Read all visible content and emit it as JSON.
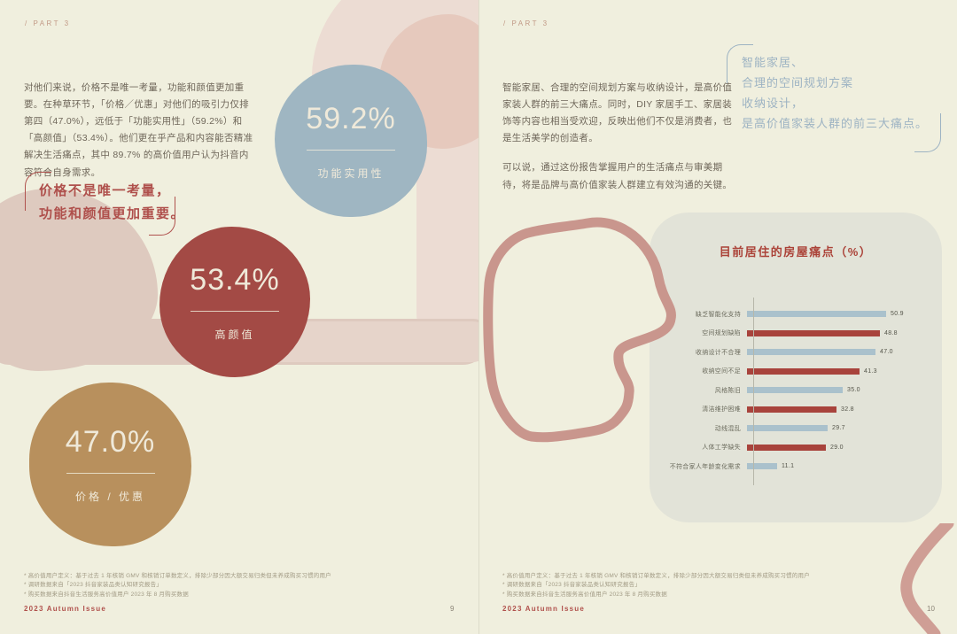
{
  "page_left": {
    "part_label": "/ PART 3",
    "body": "对他们来说，价格不是唯一考量，功能和颜值更加重要。在种草环节，「价格／优惠」对他们的吸引力仅排第四（47.0%），远低于「功能实用性」（59.2%）和「高颜值」（53.4%）。他们更在乎产品和内容能否精准解决生活痛点，其中 89.7% 的高价值用户认为抖音内容符合自身需求。",
    "callout_line1": "价格不是唯一考量，",
    "callout_line2": "功能和颜值更加重要。",
    "stats": [
      {
        "value": "59.2%",
        "label": "功能实用性",
        "color": "#9fb6c2"
      },
      {
        "value": "53.4%",
        "label": "高颜值",
        "color": "#a34a45"
      },
      {
        "value": "47.0%",
        "label": "价格 / 优惠",
        "color": "#b8905d"
      }
    ],
    "footnotes": [
      "* 高价值用户定义：基于过去 1 年核销 GMV 和核销订单数定义，排除少部分因大额交易归类但未养成购买习惯的用户",
      "* 调研数据来自「2023 抖音家装品类认知研究报告」",
      "* 购买数据来自抖音生活服务高价值用户 2023 年 8 月购买数据"
    ],
    "issue_label": "2023 Autumn Issue",
    "page_number": "9"
  },
  "page_right": {
    "part_label": "/ PART 3",
    "body_1": "智能家居、合理的空间规划方案与收纳设计，是高价值家装人群的前三大痛点。同时，DIY 家居手工、家居装饰等内容也相当受欢迎，反映出他们不仅是消费者，也是生活美学的创造者。",
    "body_2": "可以说，通过这份报告掌握用户的生活痛点与审美期待，将是品牌与高价值家装人群建立有效沟通的关键。",
    "callout_lines": [
      "智能家居、",
      "合理的空间规划方案",
      "收纳设计，",
      "是高价值家装人群的前三大痛点。"
    ],
    "footnotes": [
      "* 高价值用户定义：基于过去 1 年核销 GMV 和核销订单数定义，排除少部分因大额交易归类但未养成购买习惯的用户",
      "* 调研数据来自「2023 抖音家装品类认知研究报告」",
      "* 购买数据来自抖音生活服务高价值用户 2023 年 8 月购买数据"
    ],
    "issue_label": "2023 Autumn Issue",
    "page_number": "10"
  },
  "chart_data": {
    "type": "bar",
    "orientation": "horizontal",
    "title": "目前居住的房屋痛点（%）",
    "categories": [
      "缺乏智能化支持",
      "空间规划缺陷",
      "收纳设计不合理",
      "收纳空间不足",
      "风格陈旧",
      "清洁维护困难",
      "动线混乱",
      "人体工学缺失",
      "不符合家人年龄变化需求"
    ],
    "values": [
      50.9,
      48.8,
      47.0,
      41.3,
      35.0,
      32.8,
      29.7,
      29.0,
      11.1
    ],
    "value_labels": [
      "50.9",
      "48.8",
      "47.0",
      "41.3",
      "35.0",
      "32.8",
      "29.7",
      "29.0",
      "11.1"
    ],
    "bar_colors": [
      "#aac1cc",
      "#a8433c"
    ],
    "xlim": [
      0,
      55
    ],
    "grid": false,
    "legend": "none"
  },
  "colors": {
    "page_background": "#f0efde",
    "accent_red": "#af504c",
    "accent_blue": "#9db3c3",
    "chart_card_background": "#e2e3d8",
    "chart_title_red": "#ab4238",
    "deco_pink_stroke": "#c9968d",
    "deco_pink_pale": "#ecdcd3",
    "deco_pink_band": "#decabf"
  }
}
